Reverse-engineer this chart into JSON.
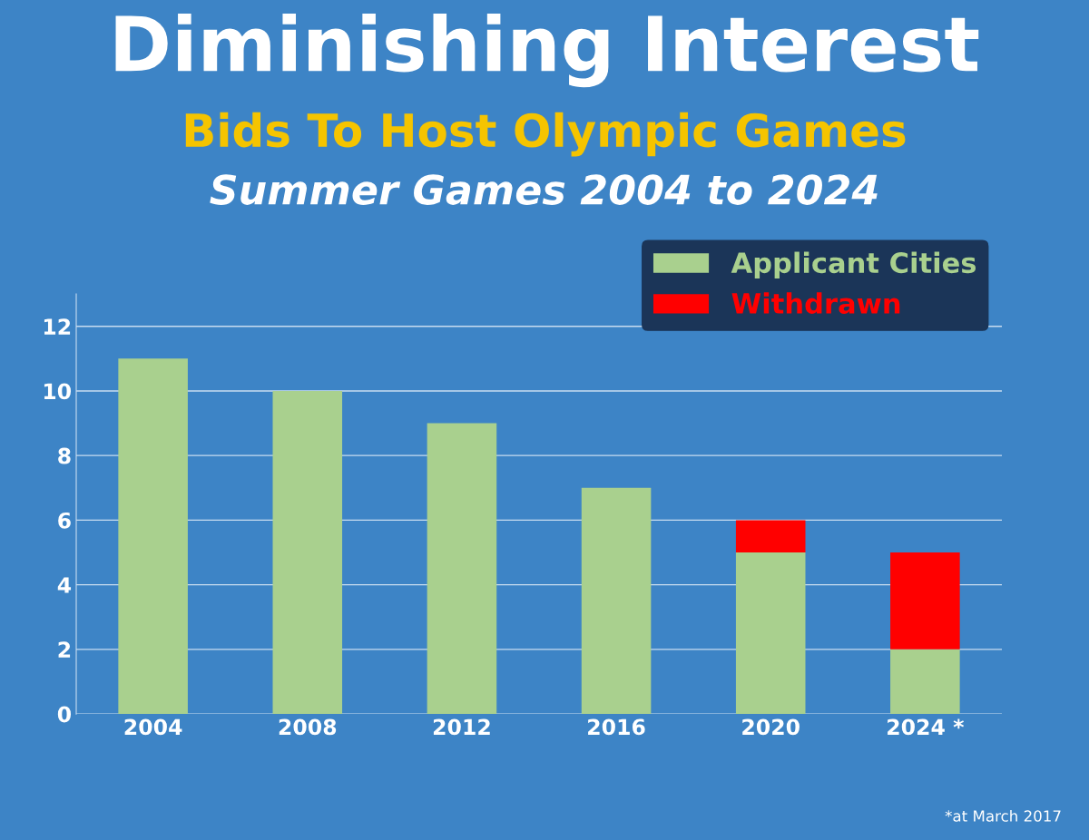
{
  "chart_data": {
    "type": "bar",
    "title": "Diminishing Interest",
    "subtitle": "Bids To Host Olympic Games",
    "annotations": [
      "Summer Games 2004 to 2024",
      "*at March 2017"
    ],
    "categories": [
      "2004",
      "2008",
      "2012",
      "2016",
      "2020",
      "2024 *"
    ],
    "stacked": true,
    "series": [
      {
        "name": "Applicant Cities",
        "color": "#a9d08e",
        "values": [
          11,
          10,
          9,
          7,
          5,
          2
        ]
      },
      {
        "name": "Withdrawn",
        "color": "#ff0000",
        "values": [
          0,
          0,
          0,
          0,
          1,
          3
        ]
      }
    ],
    "ylim": [
      0,
      13
    ],
    "yticks": [
      0,
      2,
      4,
      6,
      8,
      10,
      12
    ],
    "grid": "y",
    "legend": "top right"
  }
}
